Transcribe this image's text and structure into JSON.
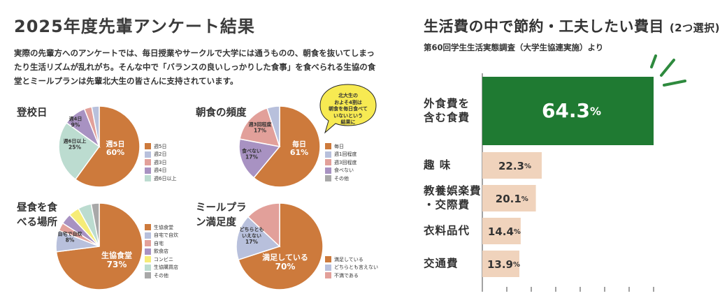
{
  "left_title": "2025年度先輩アンケート結果",
  "intro_lines": [
    "実際の先輩方へのアンケートでは、毎日授業やサークルで大学には通うものの、朝食を抜いてしまっ",
    "たり生活リズムが乱れがち。そんな中で「バランスの良いしっかりした食事」を食べられる生協の食",
    "堂とミールプランは先輩北大生の皆さんに支持されています。"
  ],
  "bubble_lines": [
    "北大生の",
    "およそ4割は",
    "朝食を毎日食べて",
    "いないという",
    "結果に"
  ],
  "colors": {
    "orange": "#cd7a3c",
    "lightblue": "#b8c0dc",
    "pink": "#e2a09a",
    "purple": "#a892c2",
    "yellow": "#f6ec78",
    "mint": "#bcdcd0",
    "gray": "#a8a8a8",
    "green": "#1f7a32",
    "beige": "#f0d3bc",
    "accent_green": "#2e8a3e",
    "bubble_yellow": "#f7ea52"
  },
  "chart_data": [
    {
      "type": "pie",
      "title": "登校日",
      "slices": [
        {
          "label": "週5日",
          "value": 60,
          "color": "orange",
          "display": [
            "週5日",
            "60%"
          ]
        },
        {
          "label": "週6日以上",
          "value": 25,
          "color": "mint",
          "display": [
            "週6日以上",
            "25%"
          ]
        },
        {
          "label": "週4日",
          "value": 9,
          "color": "purple",
          "display": [
            "週4日",
            "9%"
          ]
        },
        {
          "label": "週3日",
          "value": 3,
          "color": "pink",
          "display": []
        },
        {
          "label": "週2日",
          "value": 3,
          "color": "lightblue",
          "display": []
        }
      ],
      "legend": [
        {
          "label": "週5日",
          "color": "orange"
        },
        {
          "label": "週2日",
          "color": "lightblue"
        },
        {
          "label": "週3日",
          "color": "pink"
        },
        {
          "label": "週4日",
          "color": "purple"
        },
        {
          "label": "週6日以上",
          "color": "mint"
        }
      ]
    },
    {
      "type": "pie",
      "title": "朝食の頻度",
      "slices": [
        {
          "label": "毎日",
          "value": 61,
          "color": "orange",
          "display": [
            "毎日",
            "61%"
          ]
        },
        {
          "label": "食べない",
          "value": 17,
          "color": "purple",
          "display": [
            "食べない",
            "17%"
          ]
        },
        {
          "label": "週3回程度",
          "value": 17,
          "color": "pink",
          "display": [
            "週3回程度",
            "17%"
          ]
        },
        {
          "label": "週1回程度",
          "value": 5,
          "color": "lightblue",
          "display": []
        }
      ],
      "legend": [
        {
          "label": "毎日",
          "color": "orange"
        },
        {
          "label": "週1回程度",
          "color": "lightblue"
        },
        {
          "label": "週3回程度",
          "color": "pink"
        },
        {
          "label": "食べない",
          "color": "purple"
        },
        {
          "label": "その他",
          "color": "gray"
        }
      ]
    },
    {
      "type": "pie",
      "title": "昼食を食べる場所",
      "slices": [
        {
          "label": "生協食堂",
          "value": 73,
          "color": "orange",
          "display": [
            "生協食堂",
            "73%"
          ]
        },
        {
          "label": "自宅で自炊",
          "value": 8,
          "color": "lightblue",
          "display": [
            "自宅で自炊",
            "8%"
          ]
        },
        {
          "label": "自宅",
          "value": 3,
          "color": "pink",
          "display": []
        },
        {
          "label": "飲食店",
          "value": 4,
          "color": "purple",
          "display": []
        },
        {
          "label": "コンビニ",
          "value": 4,
          "color": "yellow",
          "display": []
        },
        {
          "label": "生協購買店",
          "value": 5,
          "color": "mint",
          "display": []
        },
        {
          "label": "その他",
          "value": 3,
          "color": "gray",
          "display": []
        }
      ],
      "legend": [
        {
          "label": "生協食堂",
          "color": "orange"
        },
        {
          "label": "自宅で自炊",
          "color": "lightblue"
        },
        {
          "label": "自宅",
          "color": "pink"
        },
        {
          "label": "飲食店",
          "color": "purple"
        },
        {
          "label": "コンビニ",
          "color": "yellow"
        },
        {
          "label": "生協購買店",
          "color": "mint"
        },
        {
          "label": "その他",
          "color": "gray"
        }
      ]
    },
    {
      "type": "pie",
      "title": "ミールプラン満足度",
      "slices": [
        {
          "label": "満足している",
          "value": 70,
          "color": "orange",
          "display": [
            "満足している",
            "70%"
          ]
        },
        {
          "label": "どちらとも言えない",
          "value": 17,
          "color": "lightblue",
          "display": [
            "どちらとも",
            "いえない",
            "17%"
          ]
        },
        {
          "label": "不満である",
          "value": 13,
          "color": "pink",
          "display": []
        }
      ],
      "legend": [
        {
          "label": "満足している",
          "color": "orange"
        },
        {
          "label": "どちらとも言えない",
          "color": "lightblue"
        },
        {
          "label": "不満である",
          "color": "pink"
        }
      ]
    },
    {
      "type": "bar",
      "orientation": "horizontal",
      "title": "生活費の中で節約・工夫したい費目",
      "title_note": "(2つ選択)",
      "subtitle": "第60回学生生活実態調査（大学生協連実施）より",
      "xlim": [
        0,
        70
      ],
      "categories": [
        "外食費を含む食費",
        "趣味",
        "教養娯楽費・交際費",
        "衣料品代",
        "交通費"
      ],
      "values": [
        64.3,
        22.3,
        20.1,
        14.4,
        13.9
      ],
      "labels": [
        {
          "lines": [
            "外食費を",
            "含む食費"
          ],
          "value": "64.3",
          "unit": "%"
        },
        {
          "lines": [
            "趣 味"
          ],
          "value": "22.3",
          "unit": "%"
        },
        {
          "lines": [
            "教養娯楽費",
            "・交際費"
          ],
          "value": "20.1",
          "unit": "%"
        },
        {
          "lines": [
            "衣料品代"
          ],
          "value": "14.4",
          "unit": "%"
        },
        {
          "lines": [
            "交通費"
          ],
          "value": "13.9",
          "unit": "%"
        }
      ]
    }
  ]
}
